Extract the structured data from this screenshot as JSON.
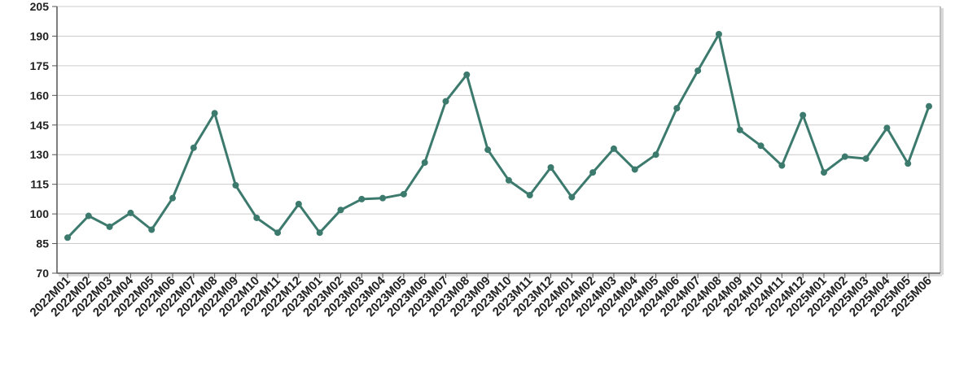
{
  "chart_data": {
    "type": "line",
    "title": "",
    "xlabel": "",
    "ylabel": "",
    "ylim": [
      70,
      205
    ],
    "yticks": [
      70,
      85,
      100,
      115,
      130,
      145,
      160,
      175,
      190,
      205
    ],
    "grid": "horizontal",
    "legend": "none",
    "colors": {
      "line": "#3d7a6e",
      "grid": "#cccccc",
      "axis": "#555555",
      "frame": "#aaaaaa"
    },
    "categories": [
      "2022M01",
      "2022M02",
      "2022M03",
      "2022M04",
      "2022M05",
      "2022M06",
      "2022M07",
      "2022M08",
      "2022M09",
      "2022M10",
      "2022M11",
      "2022M12",
      "2023M01",
      "2023M02",
      "2023M03",
      "2023M04",
      "2023M05",
      "2023M06",
      "2023M07",
      "2023M08",
      "2023M09",
      "2023M10",
      "2023M11",
      "2023M12",
      "2024M01",
      "2024M02",
      "2024M03",
      "2024M04",
      "2024M05",
      "2024M06",
      "2024M07",
      "2024M08",
      "2024M09",
      "2024M10",
      "2024M11",
      "2024M12",
      "2025M01",
      "2025M02",
      "2025M03",
      "2025M04",
      "2025M05",
      "2025M06"
    ],
    "series": [
      {
        "name": "",
        "values": [
          88,
          99,
          93.5,
          100.5,
          92,
          108,
          133.5,
          151,
          114.5,
          98,
          90.5,
          105,
          90.5,
          102,
          107.5,
          108,
          110,
          126,
          157,
          170.5,
          132.5,
          117,
          109.5,
          123.5,
          108.5,
          121,
          133,
          122.5,
          130,
          153.5,
          172.5,
          191,
          142.5,
          134.5,
          124.5,
          150,
          121,
          129,
          128,
          143.5,
          125.5,
          154.5
        ]
      }
    ]
  }
}
